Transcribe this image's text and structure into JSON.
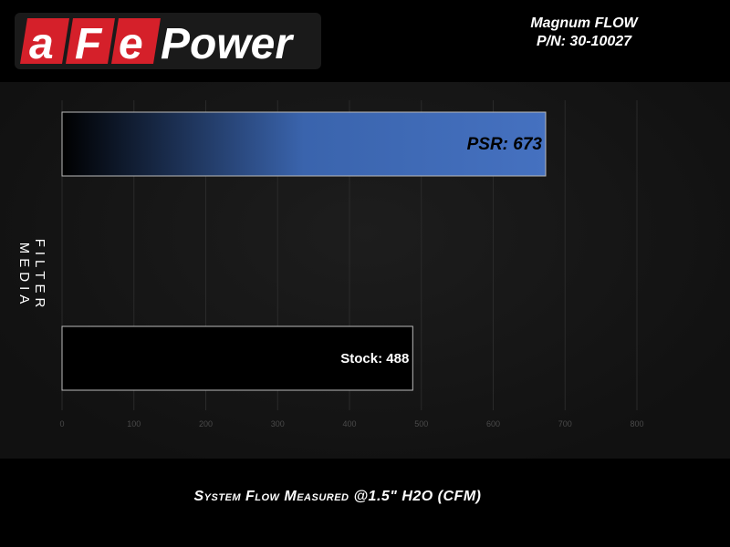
{
  "header": {
    "brand": "aFePower",
    "title_line1": "Magnum FLOW",
    "title_line2": "P/N: 30-10027"
  },
  "colors": {
    "brand_red": "#d5202a",
    "bar_blue": "#3f6bb8",
    "background": "#000000"
  },
  "chart_data": {
    "type": "bar",
    "orientation": "horizontal",
    "categories": [
      "PSR",
      "Stock"
    ],
    "values": [
      673,
      488
    ],
    "data_labels": [
      "PSR: 673",
      "Stock: 488"
    ],
    "xlabel": "System Flow Measured @1.5\" H2O (CFM)",
    "ylabel": "FILTER MEDIA",
    "xlim": [
      0,
      800
    ],
    "xticks": [
      "0",
      "100",
      "200",
      "300",
      "400",
      "500",
      "600",
      "700",
      "800"
    ],
    "grid": true
  }
}
